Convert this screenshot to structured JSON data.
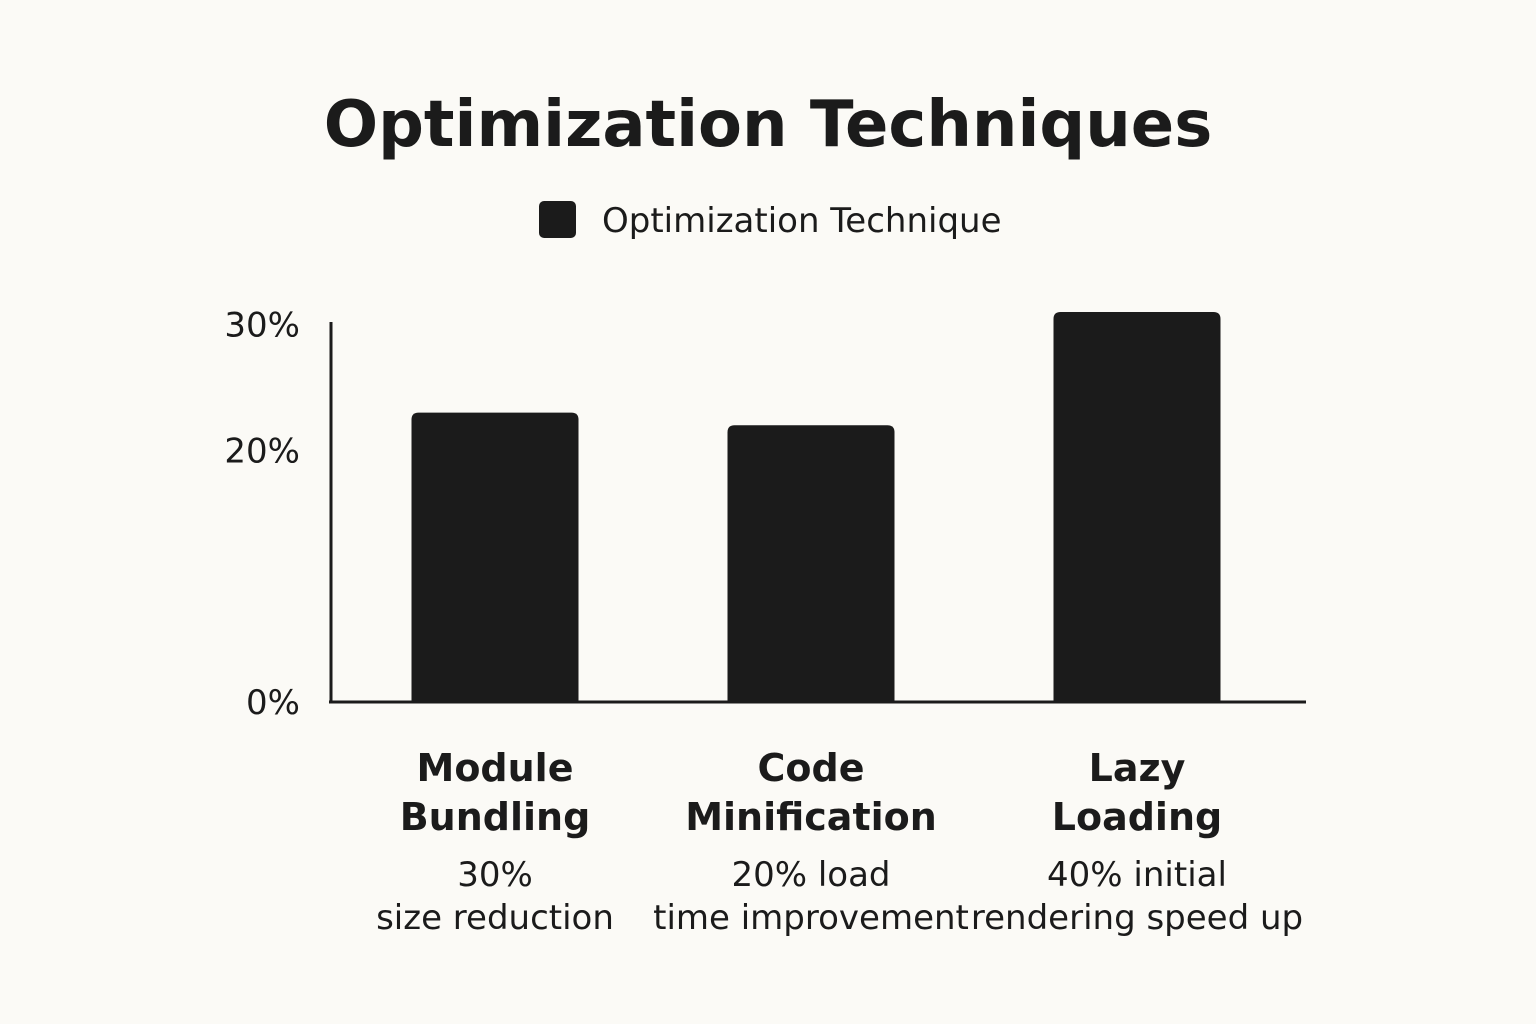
{
  "chart_data": {
    "type": "bar",
    "title": "Optimization Techniques",
    "legend": [
      "Optimization Technique"
    ],
    "legend_position": "top-center",
    "categories": [
      [
        "Module",
        "Bundling"
      ],
      [
        "Code",
        "Minification"
      ],
      [
        "Lazy",
        "Loading"
      ]
    ],
    "series": [
      {
        "name": "Optimization Technique",
        "values": [
          23,
          22,
          31
        ]
      }
    ],
    "annotations": [
      [
        "30%",
        "size reduction"
      ],
      [
        "20% load",
        "time improvement"
      ],
      [
        "40% initial",
        "rendering speed up"
      ]
    ],
    "y_ticks": [
      0,
      20,
      30
    ],
    "y_tick_labels": [
      "0%",
      "20%",
      "30%"
    ],
    "ylim": [
      0,
      31
    ],
    "xlabel": "",
    "ylabel": "",
    "grid": false,
    "bar_color": "#1b1b1b"
  }
}
